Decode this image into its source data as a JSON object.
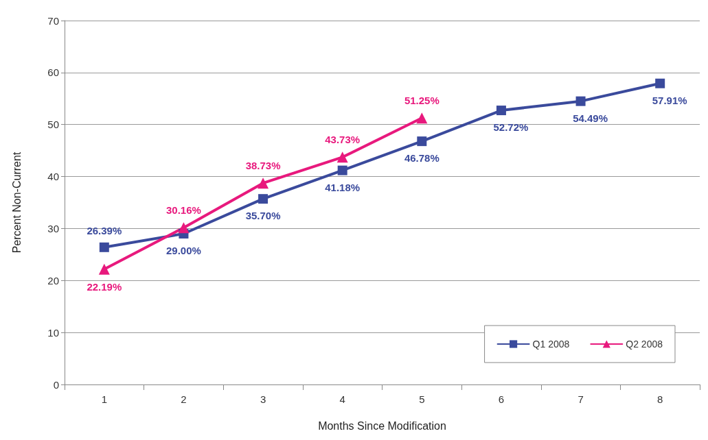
{
  "chart_data": {
    "type": "line",
    "xlabel": "Months Since Modification",
    "ylabel": "Percent Non-Current",
    "categories": [
      "1",
      "2",
      "3",
      "4",
      "5",
      "6",
      "7",
      "8"
    ],
    "series": [
      {
        "name": "Q1 2008",
        "color": "#3a4a9c",
        "marker": "square",
        "values": [
          26.39,
          29.0,
          35.7,
          41.18,
          46.78,
          52.72,
          54.49,
          57.91
        ],
        "value_labels": [
          "26.39%",
          "29.00%",
          "35.70%",
          "41.18%",
          "46.78%",
          "52.72%",
          "54.49%",
          "57.91%"
        ]
      },
      {
        "name": "Q2 2008",
        "color": "#e8197d",
        "marker": "triangle",
        "values": [
          22.19,
          30.16,
          38.73,
          43.73,
          51.25,
          null,
          null,
          null
        ],
        "value_labels": [
          "22.19%",
          "30.16%",
          "38.73%",
          "43.73%",
          "51.25%",
          null,
          null,
          null
        ]
      }
    ],
    "ylim": [
      0,
      70
    ],
    "yticks": [
      0,
      10,
      20,
      30,
      40,
      50,
      60,
      70
    ],
    "grid": "y",
    "legend": "bottom right",
    "line_style": "solid"
  }
}
